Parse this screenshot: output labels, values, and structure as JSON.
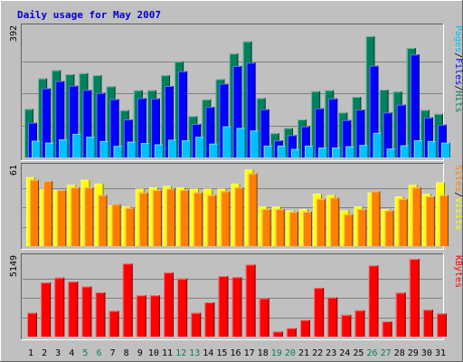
{
  "chart_data": {
    "type": "bar",
    "title": "Daily usage for May 2007",
    "days": [
      "1",
      "2",
      "3",
      "4",
      "5",
      "6",
      "7",
      "8",
      "9",
      "10",
      "11",
      "12",
      "13",
      "14",
      "15",
      "16",
      "17",
      "18",
      "19",
      "20",
      "21",
      "22",
      "23",
      "24",
      "25",
      "26",
      "27",
      "28",
      "29",
      "30",
      "31"
    ],
    "weekend_days": [
      5,
      6,
      12,
      13,
      19,
      20,
      26,
      27
    ],
    "panels": [
      {
        "name": "hits-files-pages",
        "ymax_label": "392",
        "ymax": 392,
        "legend": [
          {
            "text": "Pages",
            "color": "#00C0FF"
          },
          {
            "text": "/",
            "color": "#000000"
          },
          {
            "text": "Files",
            "color": "#0000FF"
          },
          {
            "text": "/",
            "color": "#000000"
          },
          {
            "text": "Hits",
            "color": "#00805C"
          }
        ],
        "series": [
          {
            "name": "Hits",
            "color": "#00805C",
            "values": [
              148,
              241,
              266,
              254,
              257,
              251,
              217,
              144,
              205,
              205,
              251,
              293,
              126,
              177,
              239,
              317,
              354,
              181,
              74,
              90,
              116,
              202,
              205,
              137,
              185,
              370,
              207,
              201,
              334,
              145,
              133
            ]
          },
          {
            "name": "Files",
            "color": "#0000FF",
            "values": [
              106,
              211,
              233,
              219,
              206,
              197,
              178,
              116,
              181,
              180,
              218,
              263,
              102,
              154,
              225,
              279,
              289,
              147,
              52,
              68,
              95,
              150,
              180,
              114,
              146,
              280,
              137,
              161,
              314,
              122,
              100
            ]
          },
          {
            "name": "Pages",
            "color": "#00C0FF",
            "values": [
              51,
              45,
              55,
              72,
              63,
              50,
              35,
              48,
              44,
              40,
              54,
              52,
              63,
              42,
              95,
              90,
              82,
              36,
              36,
              26,
              36,
              30,
              30,
              34,
              38,
              75,
              27,
              37,
              52,
              50,
              45
            ]
          }
        ]
      },
      {
        "name": "visits-sites",
        "ymax_label": "61",
        "ymax": 61,
        "legend": [
          {
            "text": "Sites",
            "color": "#FF8000"
          },
          {
            "text": "/",
            "color": "#000000"
          },
          {
            "text": "Visits",
            "color": "#FFFF00"
          }
        ],
        "series": [
          {
            "name": "Visits",
            "color": "#FFFF00",
            "values": [
              54,
              45,
              44,
              48,
              52,
              49,
              32,
              31,
              45,
              46,
              47,
              46,
              45,
              45,
              45,
              49,
              60,
              31,
              31,
              28,
              29,
              41,
              40,
              28,
              31,
              42,
              29,
              39,
              48,
              41,
              50
            ]
          },
          {
            "name": "Sites",
            "color": "#FF8000",
            "values": [
              52,
              51,
              44,
              46,
              46,
              40,
              33,
              30,
              42,
              44,
              45,
              44,
              42,
              40,
              43,
              46,
              57,
              29,
              29,
              27,
              27,
              37,
              38,
              25,
              29,
              43,
              28,
              37,
              46,
              39,
              40
            ]
          }
        ]
      },
      {
        "name": "kbytes",
        "ymax_label": "5149",
        "ymax": 5149,
        "legend": [
          {
            "text": "KBytes",
            "color": "#FF0000"
          }
        ],
        "series": [
          {
            "name": "KBytes",
            "color": "#FF0000",
            "values": [
              1580,
              3583,
              3908,
              3648,
              3322,
              2931,
              1710,
              4833,
              2736,
              2736,
              4246,
              3844,
              1579,
              2271,
              4007,
              3938,
              4768,
              2540,
              337,
              569,
              1105,
              3235,
              2605,
              1444,
              1744,
              4709,
              1012,
              2911,
              5149,
              1781,
              1536
            ]
          }
        ]
      }
    ]
  }
}
